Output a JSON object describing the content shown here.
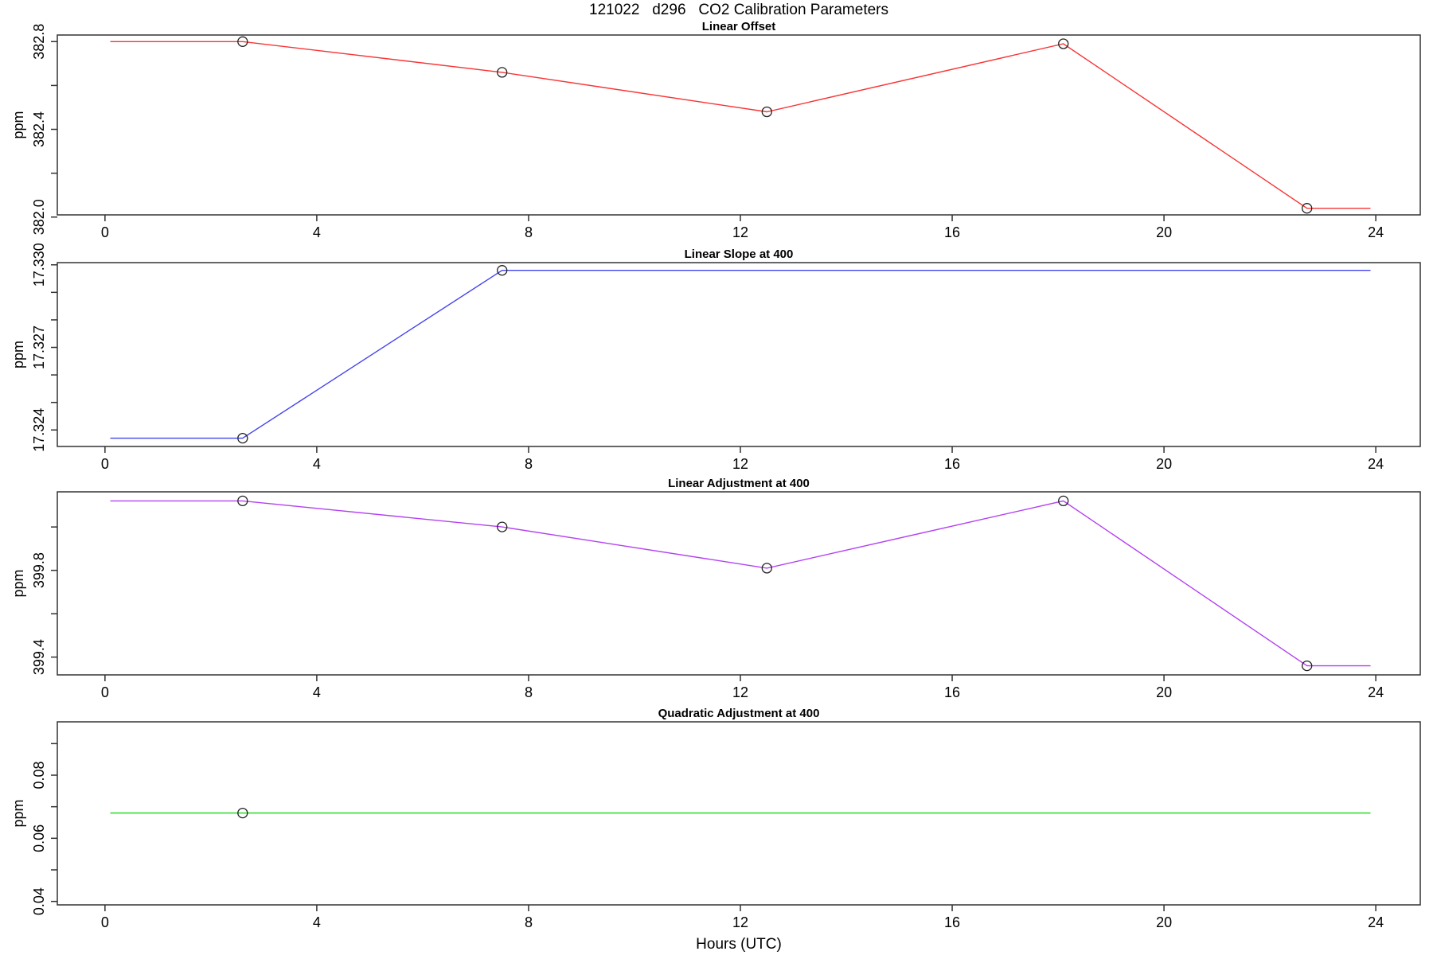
{
  "figure": {
    "title": "121022   d296   CO2 Calibration Parameters",
    "xlabel": "Hours (UTC)",
    "background_color": "#ffffff",
    "box_color": "#333333",
    "marker_color": "#222222",
    "marker_shape": "open-circle"
  },
  "chart_data": [
    {
      "type": "line",
      "title": "Linear Offset",
      "ylabel": "ppm",
      "color": "#f83434",
      "xlim": [
        -0.9,
        24.84
      ],
      "ylim": [
        382.01,
        382.83
      ],
      "xticks": [
        0,
        4,
        8,
        12,
        16,
        20,
        24
      ],
      "xtick_labels": [
        "0",
        "4",
        "8",
        "12",
        "16",
        "20",
        "24"
      ],
      "ytick_values": [
        382.0,
        382.2,
        382.4,
        382.6,
        382.8
      ],
      "ytick_labels": [
        "382.0",
        "",
        "382.4",
        "",
        "382.8"
      ],
      "line_x": [
        0.1,
        2.6,
        7.5,
        12.5,
        18.1,
        22.7,
        23.9
      ],
      "line_y": [
        382.8,
        382.8,
        382.66,
        382.48,
        382.79,
        382.04,
        382.04
      ],
      "points_x": [
        2.6,
        7.5,
        12.5,
        18.1,
        22.7
      ],
      "points_y": [
        382.8,
        382.66,
        382.48,
        382.79,
        382.04
      ]
    },
    {
      "type": "line",
      "title": "Linear Slope at 400",
      "ylabel": "ppm",
      "color": "#4343ef",
      "xlim": [
        -0.9,
        24.84
      ],
      "ylim": [
        17.3234,
        17.33008
      ],
      "xticks": [
        0,
        4,
        8,
        12,
        16,
        20,
        24
      ],
      "xtick_labels": [
        "0",
        "4",
        "8",
        "12",
        "16",
        "20",
        "24"
      ],
      "ytick_values": [
        17.324,
        17.325,
        17.326,
        17.327,
        17.328,
        17.329,
        17.33
      ],
      "ytick_labels": [
        "17.324",
        "",
        "",
        "17.327",
        "",
        "",
        "17.330"
      ],
      "line_x": [
        0.1,
        2.6,
        7.5,
        23.9
      ],
      "line_y": [
        17.3237,
        17.3237,
        17.3298,
        17.3298
      ],
      "points_x": [
        2.6,
        7.5
      ],
      "points_y": [
        17.3237,
        17.3298
      ]
    },
    {
      "type": "line",
      "title": "Linear Adjustment at 400",
      "ylabel": "ppm",
      "color": "#b341f2",
      "xlim": [
        -0.9,
        24.84
      ],
      "ylim": [
        399.318,
        400.162
      ],
      "xticks": [
        0,
        4,
        8,
        12,
        16,
        20,
        24
      ],
      "xtick_labels": [
        "0",
        "4",
        "8",
        "12",
        "16",
        "20",
        "24"
      ],
      "ytick_values": [
        399.4,
        399.6,
        399.8,
        400.0
      ],
      "ytick_labels": [
        "399.4",
        "",
        "399.8",
        ""
      ],
      "line_x": [
        0.1,
        2.6,
        7.5,
        12.5,
        18.1,
        22.7,
        23.9
      ],
      "line_y": [
        400.12,
        400.12,
        400.0,
        399.81,
        400.12,
        399.36,
        399.36
      ],
      "points_x": [
        2.6,
        7.5,
        12.5,
        18.1,
        22.7
      ],
      "points_y": [
        400.12,
        400.0,
        399.81,
        400.12,
        399.36
      ]
    },
    {
      "type": "line",
      "title": "Quadratic Adjustment at 400",
      "ylabel": "ppm",
      "color": "#12d812",
      "xlim": [
        -0.9,
        24.84
      ],
      "ylim": [
        0.0389,
        0.0969
      ],
      "xticks": [
        0,
        4,
        8,
        12,
        16,
        20,
        24
      ],
      "xtick_labels": [
        "0",
        "4",
        "8",
        "12",
        "16",
        "20",
        "24"
      ],
      "ytick_values": [
        0.04,
        0.05,
        0.06,
        0.07,
        0.08,
        0.09
      ],
      "ytick_labels": [
        "0.04",
        "",
        "0.06",
        "",
        "0.08",
        ""
      ],
      "line_x": [
        0.1,
        23.9
      ],
      "line_y": [
        0.068,
        0.068
      ],
      "points_x": [
        2.6
      ],
      "points_y": [
        0.068
      ]
    }
  ]
}
